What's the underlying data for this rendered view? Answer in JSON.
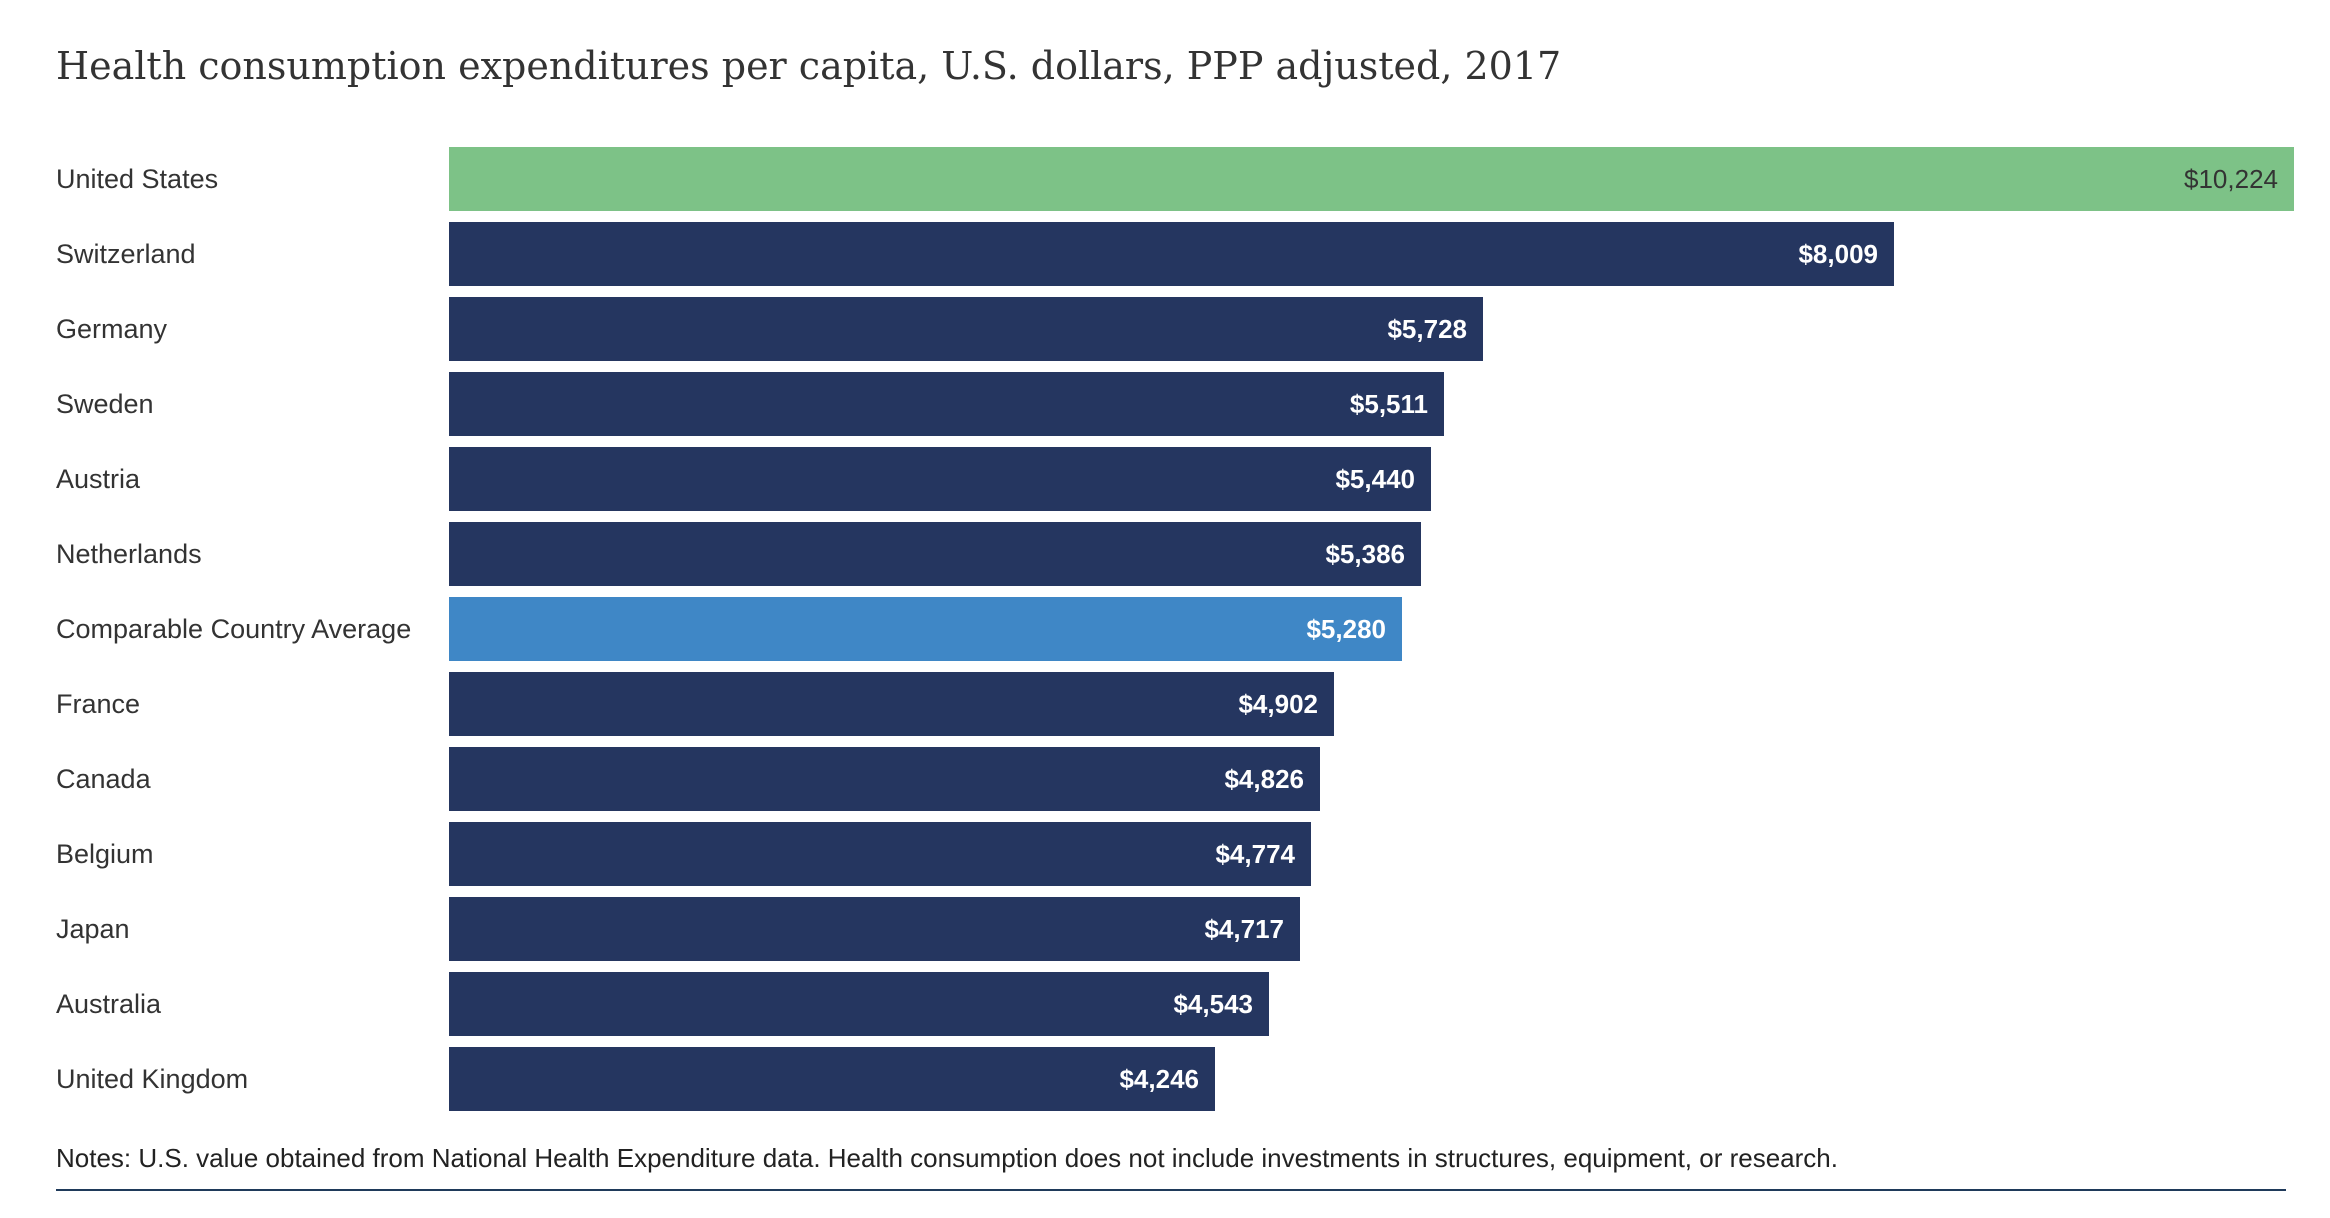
{
  "chart_data": {
    "type": "bar",
    "orientation": "horizontal",
    "title": "Health consumption expenditures per capita, U.S. dollars, PPP adjusted, 2017",
    "categories": [
      "United States",
      "Switzerland",
      "Germany",
      "Sweden",
      "Austria",
      "Netherlands",
      "Comparable Country Average",
      "France",
      "Canada",
      "Belgium",
      "Japan",
      "Australia",
      "United Kingdom"
    ],
    "values": [
      10224,
      8009,
      5728,
      5511,
      5440,
      5386,
      5280,
      4902,
      4826,
      4774,
      4717,
      4543,
      4246
    ],
    "value_labels": [
      "$10,224",
      "$8,009",
      "$5,728",
      "$5,511",
      "$5,440",
      "$5,386",
      "$5,280",
      "$4,902",
      "$4,826",
      "$4,774",
      "$4,717",
      "$4,543",
      "$4,246"
    ],
    "bar_colors": [
      "#7dc287",
      "#253660",
      "#253660",
      "#253660",
      "#253660",
      "#253660",
      "#3f87c6",
      "#253660",
      "#253660",
      "#253660",
      "#253660",
      "#253660",
      "#253660"
    ],
    "label_colors": [
      "#333333",
      "#ffffff",
      "#ffffff",
      "#ffffff",
      "#ffffff",
      "#ffffff",
      "#ffffff",
      "#ffffff",
      "#ffffff",
      "#ffffff",
      "#ffffff",
      "#ffffff",
      "#ffffff"
    ],
    "xlim": [
      0,
      10224
    ],
    "grid": false,
    "legend": "none"
  },
  "notes": "Notes: U.S. value obtained from National Health Expenditure data. Health consumption does not include investments in structures, equipment, or research."
}
